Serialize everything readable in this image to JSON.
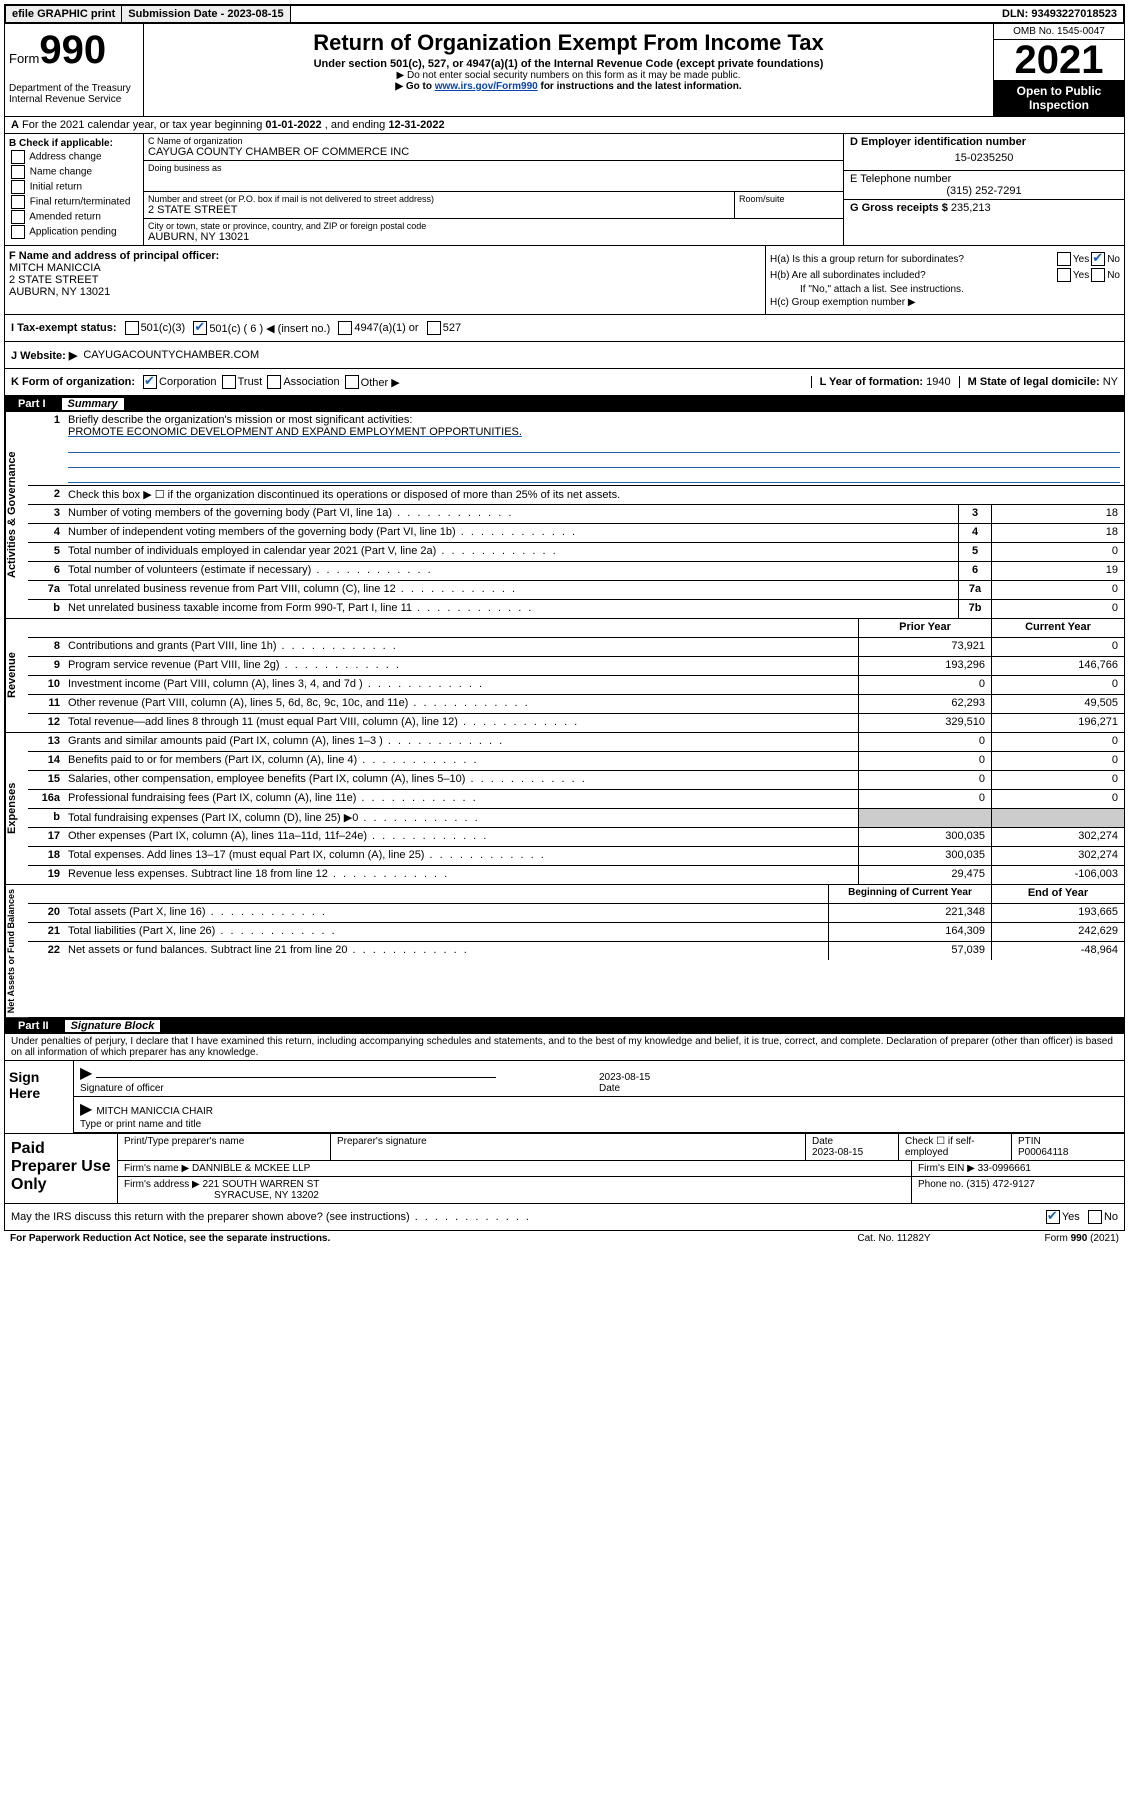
{
  "topbar": {
    "efile": "efile GRAPHIC print",
    "subdate_label": "Submission Date - ",
    "subdate": "2023-08-15",
    "dln_label": "DLN: ",
    "dln": "93493227018523"
  },
  "header": {
    "form_prefix": "Form",
    "form_no": "990",
    "dept": "Department of the Treasury\nInternal Revenue Service",
    "title": "Return of Organization Exempt From Income Tax",
    "subtitle": "Under section 501(c), 527, or 4947(a)(1) of the Internal Revenue Code (except private foundations)",
    "note1": "▶ Do not enter social security numbers on this form as it may be made public.",
    "note2_pre": "▶ Go to ",
    "note2_link": "www.irs.gov/Form990",
    "note2_post": " for instructions and the latest information.",
    "omb": "OMB No. 1545-0047",
    "year": "2021",
    "inspection": "Open to Public Inspection"
  },
  "rowA": {
    "text_pre": "For the 2021 calendar year, or tax year beginning ",
    "begin": "01-01-2022",
    "mid": " , and ending ",
    "end": "12-31-2022"
  },
  "colB": {
    "title": "B Check if applicable:",
    "opts": [
      "Address change",
      "Name change",
      "Initial return",
      "Final return/terminated",
      "Amended return",
      "Application pending"
    ]
  },
  "colC": {
    "name_label": "C Name of organization",
    "name": "CAYUGA COUNTY CHAMBER OF COMMERCE INC",
    "dba_label": "Doing business as",
    "street_label": "Number and street (or P.O. box if mail is not delivered to street address)",
    "street": "2 STATE STREET",
    "suite_label": "Room/suite",
    "city_label": "City or town, state or province, country, and ZIP or foreign postal code",
    "city": "AUBURN, NY  13021"
  },
  "colD": {
    "d_label": "D Employer identification number",
    "d_val": "15-0235250",
    "e_label": "E Telephone number",
    "e_val": "(315) 252-7291",
    "g_label": "G Gross receipts $ ",
    "g_val": "235,213"
  },
  "rowF": {
    "label": "F Name and address of principal officer:",
    "name": "MITCH MANICCIA",
    "street": "2 STATE STREET",
    "city": "AUBURN, NY  13021"
  },
  "rowH": {
    "ha": "H(a)  Is this a group return for subordinates?",
    "hb": "H(b)  Are all subordinates included?",
    "hb_note": "If \"No,\" attach a list. See instructions.",
    "hc": "H(c)  Group exemption number ▶",
    "yes": "Yes",
    "no": "No"
  },
  "rowI": {
    "label": "I  Tax-exempt status:",
    "o1": "501(c)(3)",
    "o2": "501(c) ( 6 ) ◀ (insert no.)",
    "o3": "4947(a)(1) or",
    "o4": "527"
  },
  "rowJ": {
    "label": "J  Website: ▶",
    "val": "CAYUGACOUNTYCHAMBER.COM"
  },
  "rowK": {
    "label": "K Form of organization:",
    "o1": "Corporation",
    "o2": "Trust",
    "o3": "Association",
    "o4": "Other ▶"
  },
  "rowL": {
    "l": "L Year of formation: ",
    "lval": "1940",
    "m": "M State of legal domicile: ",
    "mval": "NY"
  },
  "part1": {
    "label": "Part I",
    "title": "Summary"
  },
  "summary": {
    "line1": "Briefly describe the organization's mission or most significant activities:",
    "mission": "PROMOTE ECONOMIC DEVELOPMENT AND EXPAND EMPLOYMENT OPPORTUNITIES.",
    "line2": "Check this box ▶ ☐  if the organization discontinued its operations or disposed of more than 25% of its net assets.",
    "rows_top": [
      {
        "n": "3",
        "t": "Number of voting members of the governing body (Part VI, line 1a)",
        "box": "3",
        "v": "18"
      },
      {
        "n": "4",
        "t": "Number of independent voting members of the governing body (Part VI, line 1b)",
        "box": "4",
        "v": "18"
      },
      {
        "n": "5",
        "t": "Total number of individuals employed in calendar year 2021 (Part V, line 2a)",
        "box": "5",
        "v": "0"
      },
      {
        "n": "6",
        "t": "Total number of volunteers (estimate if necessary)",
        "box": "6",
        "v": "19"
      },
      {
        "n": "7a",
        "t": "Total unrelated business revenue from Part VIII, column (C), line 12",
        "box": "7a",
        "v": "0"
      },
      {
        "n": "b",
        "t": "Net unrelated business taxable income from Form 990-T, Part I, line 11",
        "box": "7b",
        "v": "0"
      }
    ],
    "col_prior": "Prior Year",
    "col_curr": "Current Year",
    "rev": [
      {
        "n": "8",
        "t": "Contributions and grants (Part VIII, line 1h)",
        "p": "73,921",
        "c": "0"
      },
      {
        "n": "9",
        "t": "Program service revenue (Part VIII, line 2g)",
        "p": "193,296",
        "c": "146,766"
      },
      {
        "n": "10",
        "t": "Investment income (Part VIII, column (A), lines 3, 4, and 7d )",
        "p": "0",
        "c": "0"
      },
      {
        "n": "11",
        "t": "Other revenue (Part VIII, column (A), lines 5, 6d, 8c, 9c, 10c, and 11e)",
        "p": "62,293",
        "c": "49,505"
      },
      {
        "n": "12",
        "t": "Total revenue—add lines 8 through 11 (must equal Part VIII, column (A), line 12)",
        "p": "329,510",
        "c": "196,271"
      }
    ],
    "exp": [
      {
        "n": "13",
        "t": "Grants and similar amounts paid (Part IX, column (A), lines 1–3 )",
        "p": "0",
        "c": "0"
      },
      {
        "n": "14",
        "t": "Benefits paid to or for members (Part IX, column (A), line 4)",
        "p": "0",
        "c": "0"
      },
      {
        "n": "15",
        "t": "Salaries, other compensation, employee benefits (Part IX, column (A), lines 5–10)",
        "p": "0",
        "c": "0"
      },
      {
        "n": "16a",
        "t": "Professional fundraising fees (Part IX, column (A), line 11e)",
        "p": "0",
        "c": "0"
      },
      {
        "n": "b",
        "t": "Total fundraising expenses (Part IX, column (D), line 25) ▶0",
        "p": "",
        "c": "",
        "shade": true
      },
      {
        "n": "17",
        "t": "Other expenses (Part IX, column (A), lines 11a–11d, 11f–24e)",
        "p": "300,035",
        "c": "302,274"
      },
      {
        "n": "18",
        "t": "Total expenses. Add lines 13–17 (must equal Part IX, column (A), line 25)",
        "p": "300,035",
        "c": "302,274"
      },
      {
        "n": "19",
        "t": "Revenue less expenses. Subtract line 18 from line 12",
        "p": "29,475",
        "c": "-106,003"
      }
    ],
    "col_begin": "Beginning of Current Year",
    "col_end": "End of Year",
    "net": [
      {
        "n": "20",
        "t": "Total assets (Part X, line 16)",
        "p": "221,348",
        "c": "193,665"
      },
      {
        "n": "21",
        "t": "Total liabilities (Part X, line 26)",
        "p": "164,309",
        "c": "242,629"
      },
      {
        "n": "22",
        "t": "Net assets or fund balances. Subtract line 21 from line 20",
        "p": "57,039",
        "c": "-48,964"
      }
    ],
    "tab_gov": "Activities & Governance",
    "tab_rev": "Revenue",
    "tab_exp": "Expenses",
    "tab_net": "Net Assets or Fund Balances"
  },
  "part2": {
    "label": "Part II",
    "title": "Signature Block",
    "decl": "Under penalties of perjury, I declare that I have examined this return, including accompanying schedules and statements, and to the best of my knowledge and belief, it is true, correct, and complete. Declaration of preparer (other than officer) is based on all information of which preparer has any knowledge."
  },
  "sign": {
    "here": "Sign Here",
    "sig_label": "Signature of officer",
    "date_label": "Date",
    "date": "2023-08-15",
    "name": "MITCH MANICCIA CHAIR",
    "name_label": "Type or print name and title"
  },
  "prep": {
    "here": "Paid Preparer Use Only",
    "h1": "Print/Type preparer's name",
    "h2": "Preparer's signature",
    "h3": "Date",
    "h3v": "2023-08-15",
    "h4": "Check ☐ if self-employed",
    "h5": "PTIN",
    "h5v": "P00064118",
    "firm_label": "Firm's name   ▶",
    "firm": "DANNIBLE & MCKEE LLP",
    "ein_label": "Firm's EIN ▶",
    "ein": "33-0996661",
    "addr_label": "Firm's address ▶",
    "addr1": "221 SOUTH WARREN ST",
    "addr2": "SYRACUSE, NY  13202",
    "phone_label": "Phone no. ",
    "phone": "(315) 472-9127"
  },
  "footer": {
    "q": "May the IRS discuss this return with the preparer shown above? (see instructions)",
    "paperwork": "For Paperwork Reduction Act Notice, see the separate instructions.",
    "cat": "Cat. No. 11282Y",
    "form": "Form 990 (2021)",
    "yes": "Yes",
    "no": "No"
  }
}
